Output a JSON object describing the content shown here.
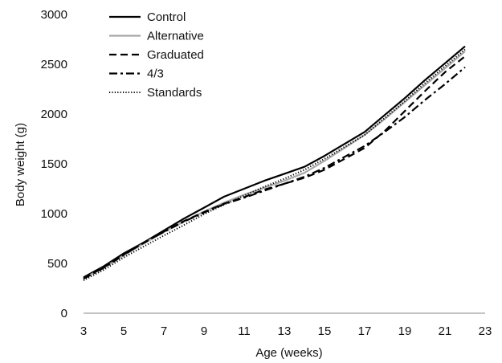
{
  "chart_data": {
    "type": "line",
    "title": "",
    "xlabel": "Age (weeks)",
    "ylabel": "Body weight (g)",
    "xlim": [
      3,
      23
    ],
    "ylim": [
      0,
      3000
    ],
    "xticks": [
      "3",
      "5",
      "7",
      "9",
      "11",
      "13",
      "15",
      "17",
      "19",
      "21",
      "23"
    ],
    "yticks": [
      "0",
      "500",
      "1000",
      "1500",
      "2000",
      "2500",
      "3000"
    ],
    "grid": false,
    "legend_position": "top-left",
    "x": [
      3,
      4,
      5,
      6,
      7,
      8,
      9,
      10,
      11,
      12,
      13,
      14,
      15,
      16,
      17,
      18,
      19,
      20,
      21,
      22
    ],
    "series": [
      {
        "name": "Control",
        "style": "solid",
        "color": "#000000",
        "values": [
          360,
          470,
          600,
          710,
          830,
          950,
          1060,
          1170,
          1250,
          1330,
          1400,
          1470,
          1580,
          1700,
          1820,
          1990,
          2160,
          2340,
          2510,
          2680
        ]
      },
      {
        "name": "Alternative",
        "style": "solid",
        "color": "#a8a8a8",
        "values": [
          350,
          455,
          580,
          700,
          815,
          920,
          1020,
          1110,
          1190,
          1260,
          1330,
          1410,
          1530,
          1660,
          1790,
          1950,
          2120,
          2290,
          2460,
          2630
        ]
      },
      {
        "name": "Graduated",
        "style": "dashed",
        "color": "#000000",
        "values": [
          350,
          460,
          590,
          705,
          820,
          925,
          1015,
          1100,
          1165,
          1240,
          1300,
          1360,
          1440,
          1550,
          1660,
          1830,
          2030,
          2230,
          2420,
          2580
        ]
      },
      {
        "name": "4/3",
        "style": "dashdot",
        "color": "#000000",
        "values": [
          345,
          455,
          585,
          710,
          815,
          920,
          1010,
          1095,
          1160,
          1230,
          1300,
          1370,
          1460,
          1570,
          1680,
          1820,
          1970,
          2140,
          2300,
          2470
        ]
      },
      {
        "name": "Standards",
        "style": "dotted",
        "color": "#000000",
        "values": [
          330,
          435,
          560,
          670,
          780,
          885,
          995,
          1090,
          1180,
          1270,
          1350,
          1440,
          1550,
          1670,
          1790,
          1960,
          2130,
          2310,
          2480,
          2650
        ]
      }
    ]
  }
}
